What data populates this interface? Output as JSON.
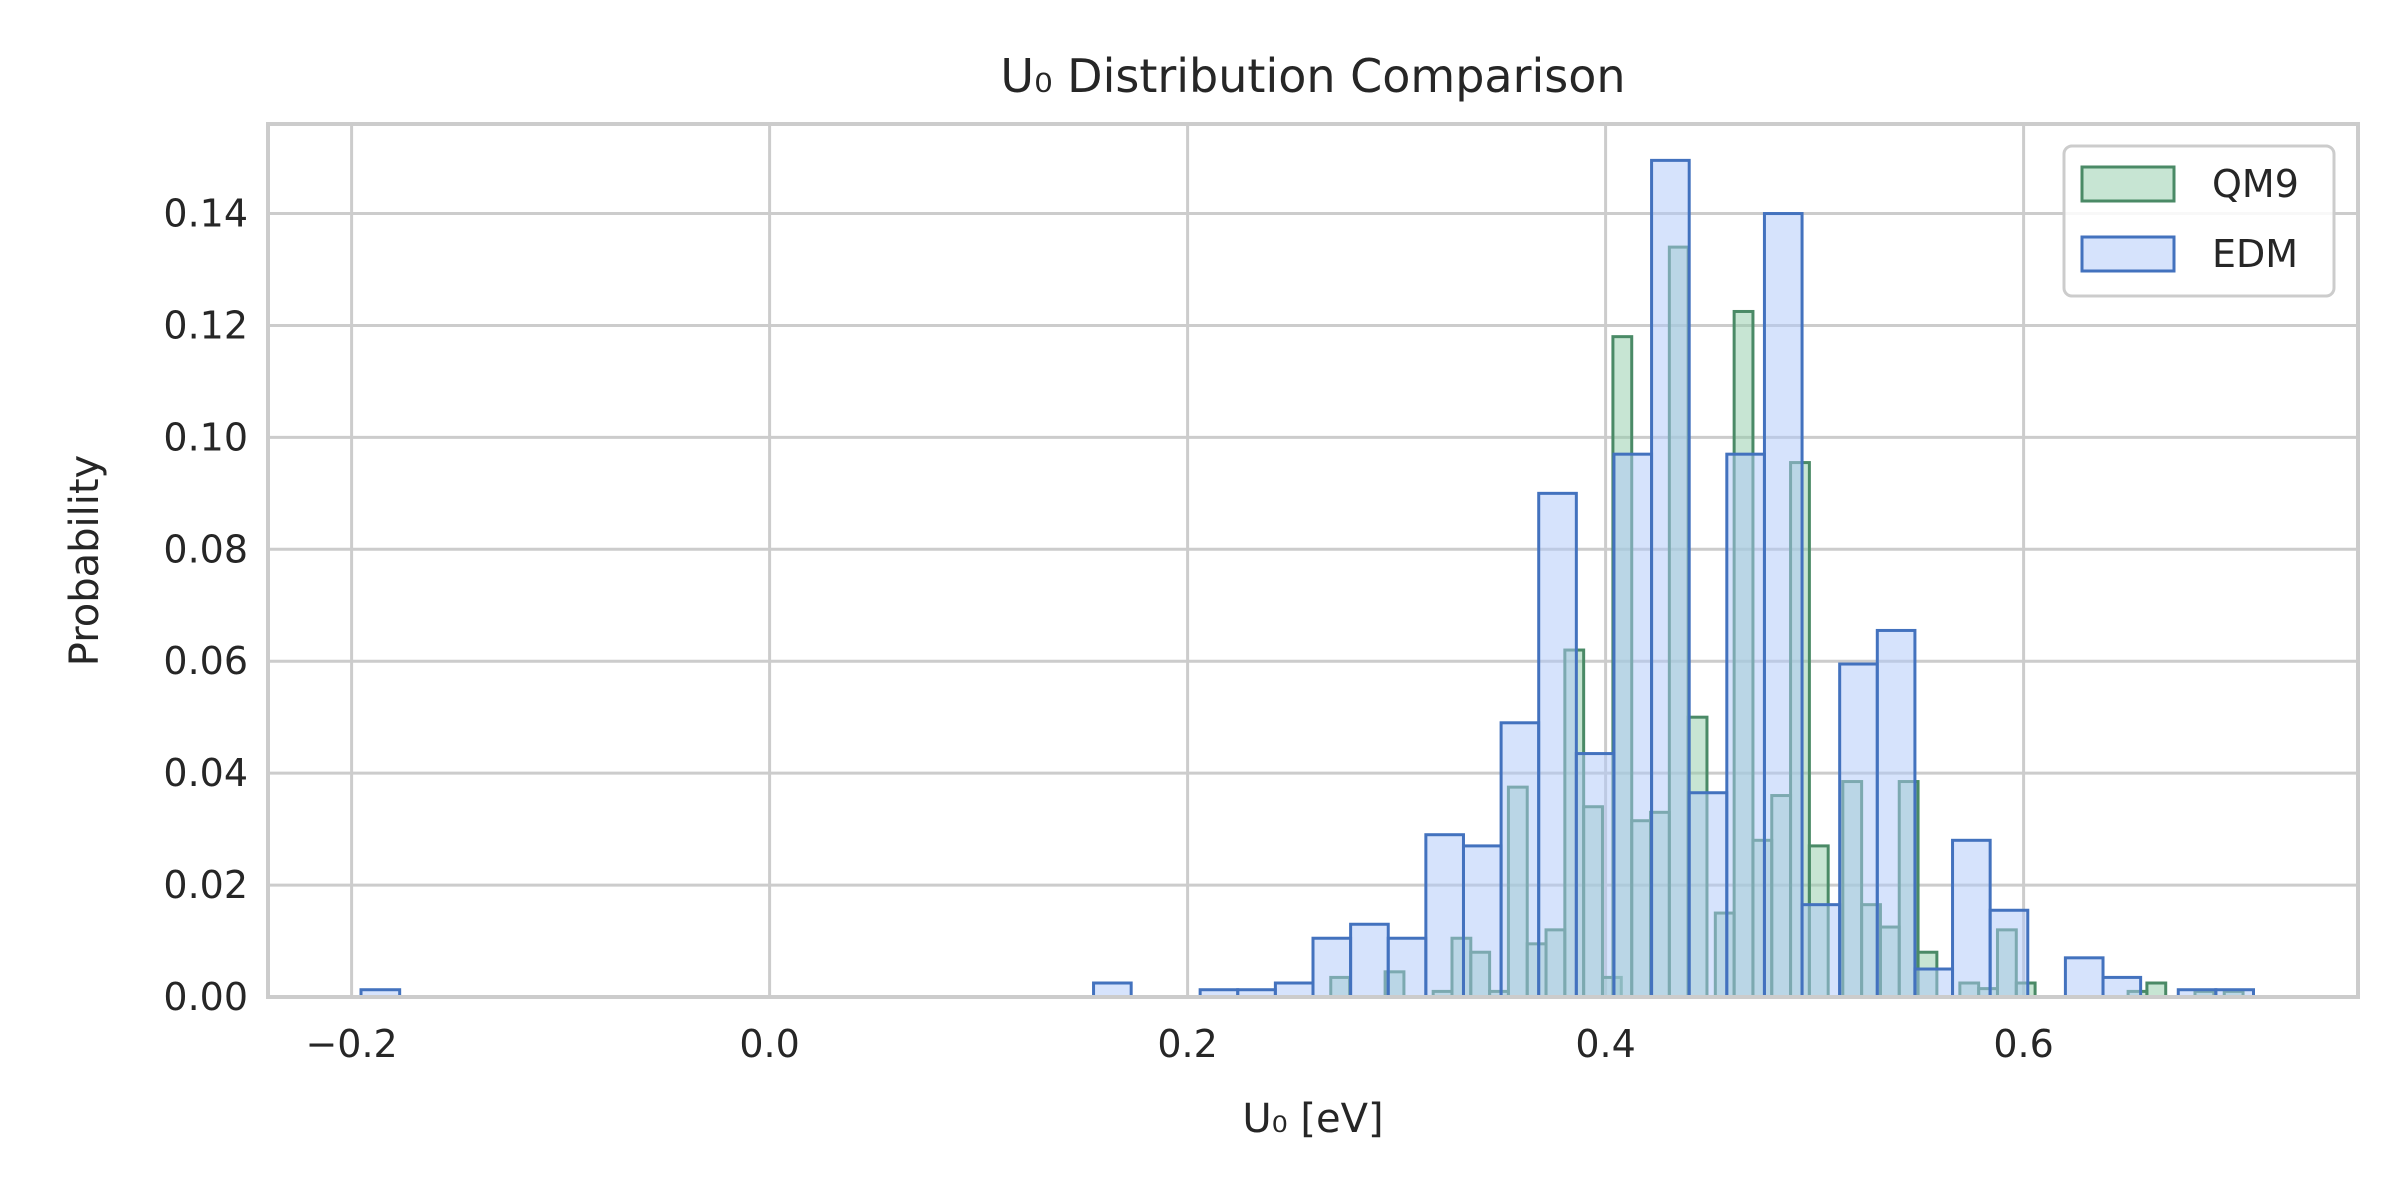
{
  "chart_data": {
    "type": "bar",
    "title": "U₀ Distribution Comparison",
    "xlabel": "U₀ [eV]",
    "ylabel": "Probability",
    "xlim": [
      -0.24,
      0.76
    ],
    "ylim": [
      0.0,
      0.156
    ],
    "xticks": [
      -0.2,
      0.0,
      0.2,
      0.4,
      0.6
    ],
    "xtick_labels": [
      "−0.2",
      "0.0",
      "0.2",
      "0.4",
      "0.6"
    ],
    "yticks": [
      0.0,
      0.02,
      0.04,
      0.06,
      0.08,
      0.1,
      0.12,
      0.14
    ],
    "ytick_labels": [
      "0.00",
      "0.02",
      "0.04",
      "0.06",
      "0.08",
      "0.10",
      "0.12",
      "0.14"
    ],
    "grid": true,
    "legend_position": "top-right",
    "colors": {
      "QM9": {
        "fill": "#8fcca8",
        "edge": "#4a8a66"
      },
      "EDM": {
        "fill": "#aec7fa",
        "edge": "#4372be"
      },
      "grid": "#cccccc",
      "spine": "#cccccc",
      "text": "#262626"
    },
    "series": [
      {
        "name": "QM9",
        "bins": [
          [
            0.2685,
            0.2775,
            0.0035
          ],
          [
            0.2945,
            0.3035,
            0.0045
          ],
          [
            0.3175,
            0.3265,
            0.001
          ],
          [
            0.3265,
            0.3355,
            0.0105
          ],
          [
            0.3355,
            0.3445,
            0.008
          ],
          [
            0.3445,
            0.3535,
            0.001
          ],
          [
            0.3535,
            0.3625,
            0.0375
          ],
          [
            0.3625,
            0.3715,
            0.0095
          ],
          [
            0.3715,
            0.3805,
            0.012
          ],
          [
            0.3805,
            0.3895,
            0.062
          ],
          [
            0.3895,
            0.3985,
            0.034
          ],
          [
            0.3985,
            0.4075,
            0.0035
          ],
          [
            0.4035,
            0.4125,
            0.118
          ],
          [
            0.4125,
            0.4215,
            0.0315
          ],
          [
            0.4215,
            0.4305,
            0.033
          ],
          [
            0.4305,
            0.4395,
            0.134
          ],
          [
            0.4395,
            0.4485,
            0.05
          ],
          [
            0.4525,
            0.4615,
            0.015
          ],
          [
            0.4615,
            0.4705,
            0.1225
          ],
          [
            0.4705,
            0.4795,
            0.028
          ],
          [
            0.4795,
            0.4885,
            0.036
          ],
          [
            0.4885,
            0.4975,
            0.0955
          ],
          [
            0.4975,
            0.5065,
            0.027
          ],
          [
            0.5135,
            0.5225,
            0.0385
          ],
          [
            0.5225,
            0.5315,
            0.0165
          ],
          [
            0.5315,
            0.5405,
            0.0125
          ],
          [
            0.5405,
            0.5495,
            0.0385
          ],
          [
            0.5495,
            0.5585,
            0.008
          ],
          [
            0.5695,
            0.5785,
            0.0025
          ],
          [
            0.5785,
            0.5875,
            0.0015
          ],
          [
            0.5875,
            0.5965,
            0.012
          ],
          [
            0.5965,
            0.6055,
            0.0025
          ],
          [
            0.65,
            0.659,
            0.001
          ],
          [
            0.659,
            0.668,
            0.0025
          ],
          [
            0.682,
            0.691,
            0.001
          ],
          [
            0.696,
            0.705,
            0.001
          ]
        ]
      },
      {
        "name": "EDM",
        "bins": [
          [
            -0.1955,
            -0.177,
            0.0013
          ],
          [
            0.155,
            0.173,
            0.0025
          ],
          [
            0.206,
            0.224,
            0.0013
          ],
          [
            0.224,
            0.242,
            0.0013
          ],
          [
            0.242,
            0.26,
            0.0025
          ],
          [
            0.26,
            0.278,
            0.0105
          ],
          [
            0.278,
            0.296,
            0.013
          ],
          [
            0.296,
            0.314,
            0.0105
          ],
          [
            0.314,
            0.332,
            0.029
          ],
          [
            0.332,
            0.35,
            0.027
          ],
          [
            0.35,
            0.368,
            0.049
          ],
          [
            0.368,
            0.386,
            0.09
          ],
          [
            0.386,
            0.404,
            0.0435
          ],
          [
            0.404,
            0.422,
            0.097
          ],
          [
            0.422,
            0.44,
            0.1495
          ],
          [
            0.44,
            0.458,
            0.0365
          ],
          [
            0.458,
            0.476,
            0.097
          ],
          [
            0.476,
            0.494,
            0.14
          ],
          [
            0.494,
            0.512,
            0.0165
          ],
          [
            0.512,
            0.53,
            0.0595
          ],
          [
            0.53,
            0.548,
            0.0655
          ],
          [
            0.548,
            0.566,
            0.005
          ],
          [
            0.566,
            0.584,
            0.028
          ],
          [
            0.584,
            0.602,
            0.0155
          ],
          [
            0.62,
            0.638,
            0.007
          ],
          [
            0.638,
            0.656,
            0.0035
          ],
          [
            0.674,
            0.692,
            0.0013
          ],
          [
            0.692,
            0.71,
            0.0013
          ]
        ]
      }
    ]
  }
}
